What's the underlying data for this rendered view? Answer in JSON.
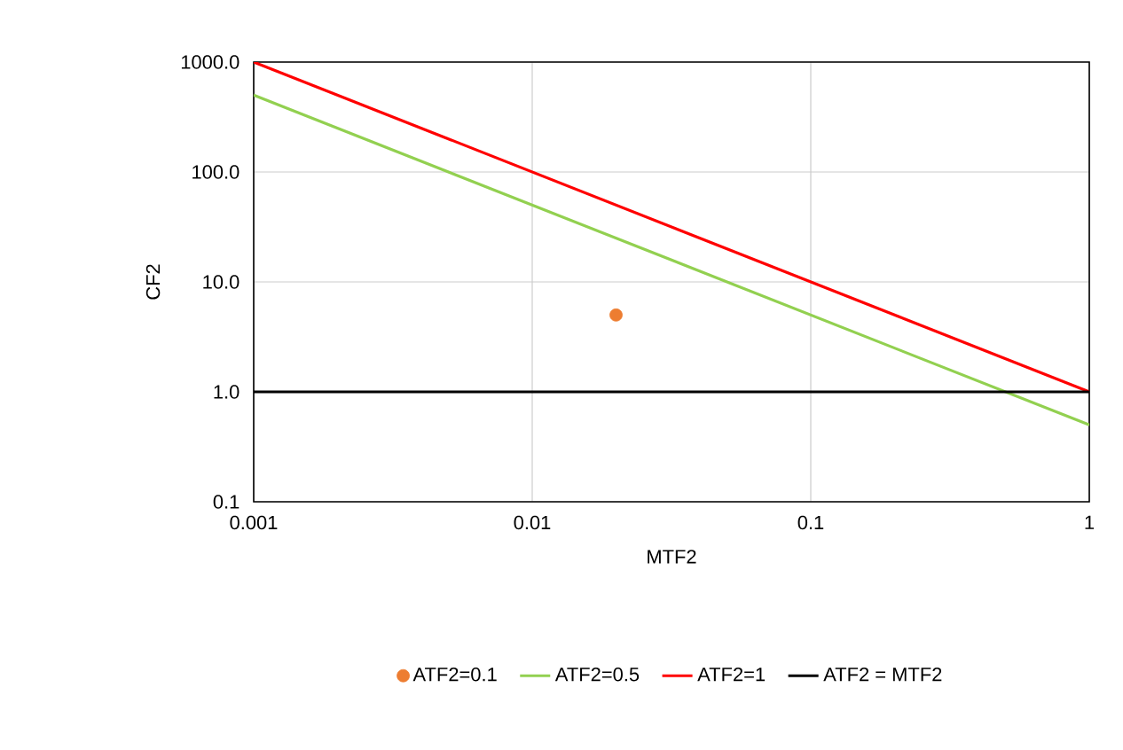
{
  "chart_data": {
    "type": "line",
    "xlabel": "MTF2",
    "ylabel": "CF2",
    "log": "xy",
    "grid": true,
    "legend": "bottom",
    "xlim": [
      0.001,
      1
    ],
    "ylim": [
      0.1,
      1000
    ],
    "xticks": [
      0.001,
      0.01,
      0.1,
      1
    ],
    "yticks": [
      {
        "value": 0.1,
        "label": "0.1"
      },
      {
        "value": 1,
        "label": "1.0"
      },
      {
        "value": 10,
        "label": "10.0"
      },
      {
        "value": 100,
        "label": "100.0"
      },
      {
        "value": 1000,
        "label": "1000.0"
      }
    ],
    "series": [
      {
        "name": "ATF2=0.1",
        "type": "scatter",
        "color": "#ed7d31",
        "x": [
          0.02
        ],
        "values": [
          5
        ]
      },
      {
        "name": "ATF2=0.5",
        "color": "#92d050",
        "x": [
          0.001,
          1
        ],
        "values": [
          500,
          0.5
        ]
      },
      {
        "name": "ATF2=1",
        "color": "#ff0000",
        "x": [
          0.001,
          1
        ],
        "values": [
          1000,
          1
        ]
      },
      {
        "name": "ATF2 = MTF2",
        "color": "#000000",
        "x": [
          0.001,
          1
        ],
        "values": [
          1,
          1
        ]
      }
    ]
  }
}
